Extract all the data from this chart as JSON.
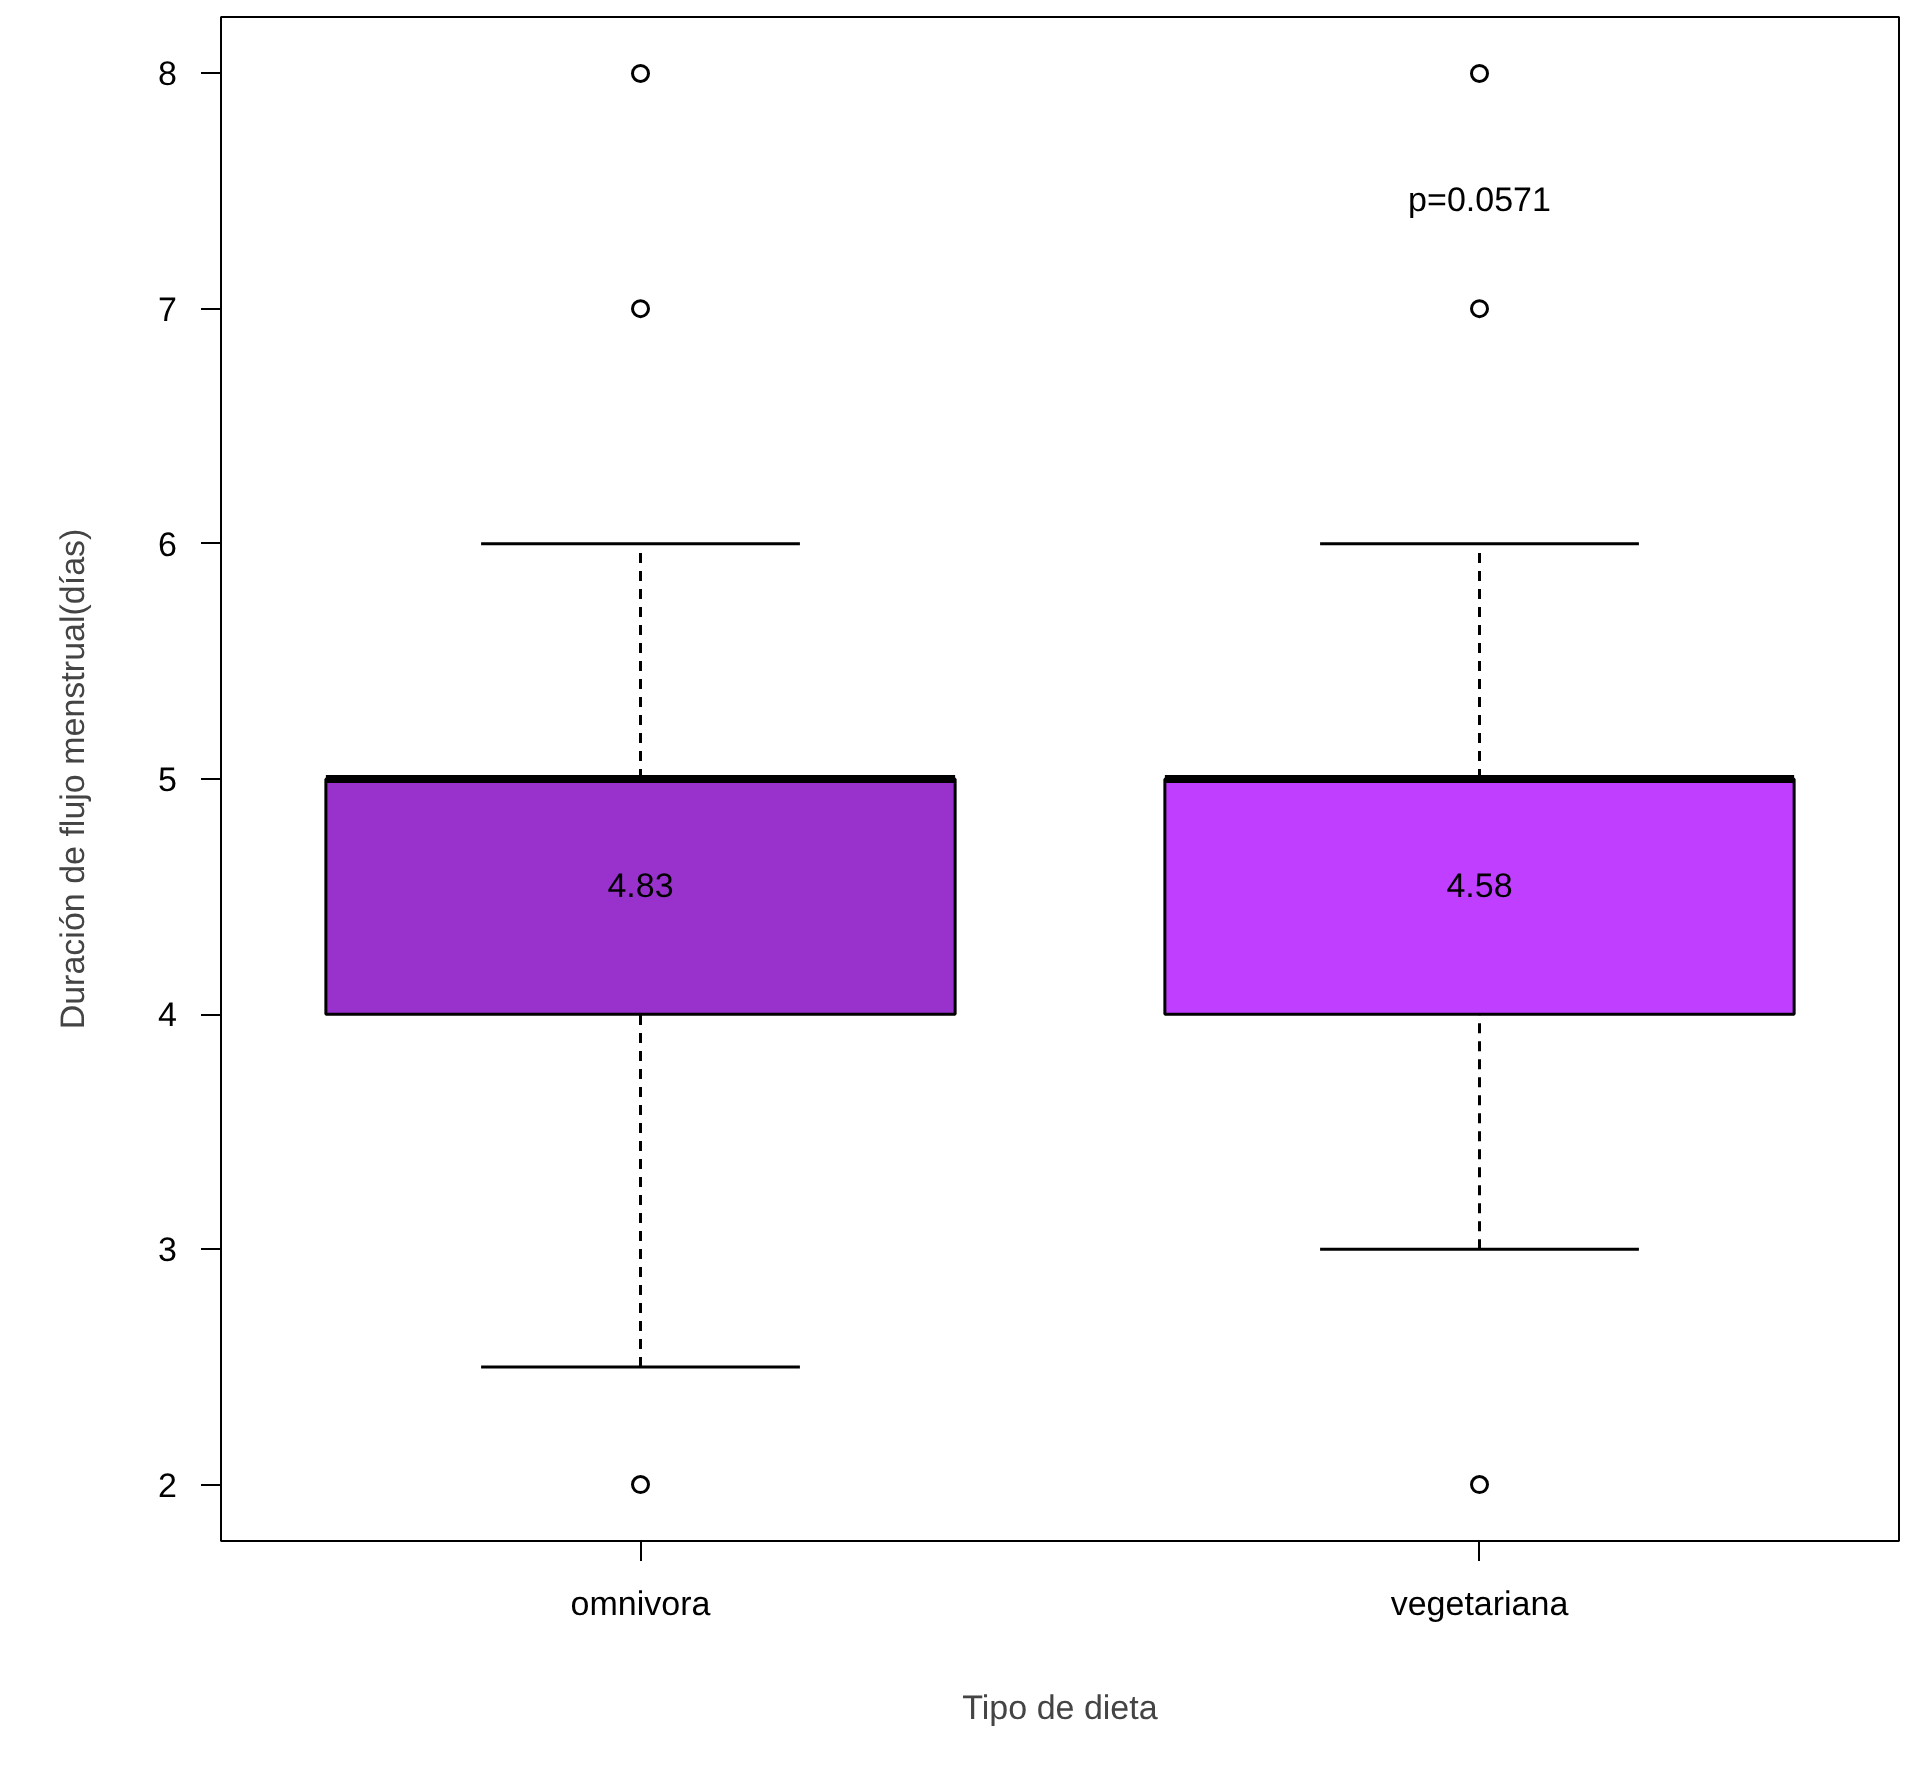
{
  "chart_data": {
    "type": "box",
    "xlabel": "Tipo de dieta",
    "ylabel": "Duración de flujo menstrual(días)",
    "categories": [
      "omnivora",
      "vegetariana"
    ],
    "colors": [
      "#9932cc",
      "#bf3eff"
    ],
    "boxes": [
      {
        "low": 2.5,
        "q1": 4,
        "median": 5,
        "q3": 5,
        "high": 6,
        "outliers": [
          2,
          7,
          8
        ]
      },
      {
        "low": 3,
        "q1": 4,
        "median": 5,
        "q3": 5,
        "high": 6,
        "outliers": [
          2,
          7,
          8
        ]
      }
    ],
    "ylim": [
      1.76,
      8.24
    ],
    "yticks": [
      2,
      3,
      4,
      5,
      6,
      7,
      8
    ],
    "annotations": [
      "4.83",
      "4.58",
      "p=0.0571"
    ]
  }
}
